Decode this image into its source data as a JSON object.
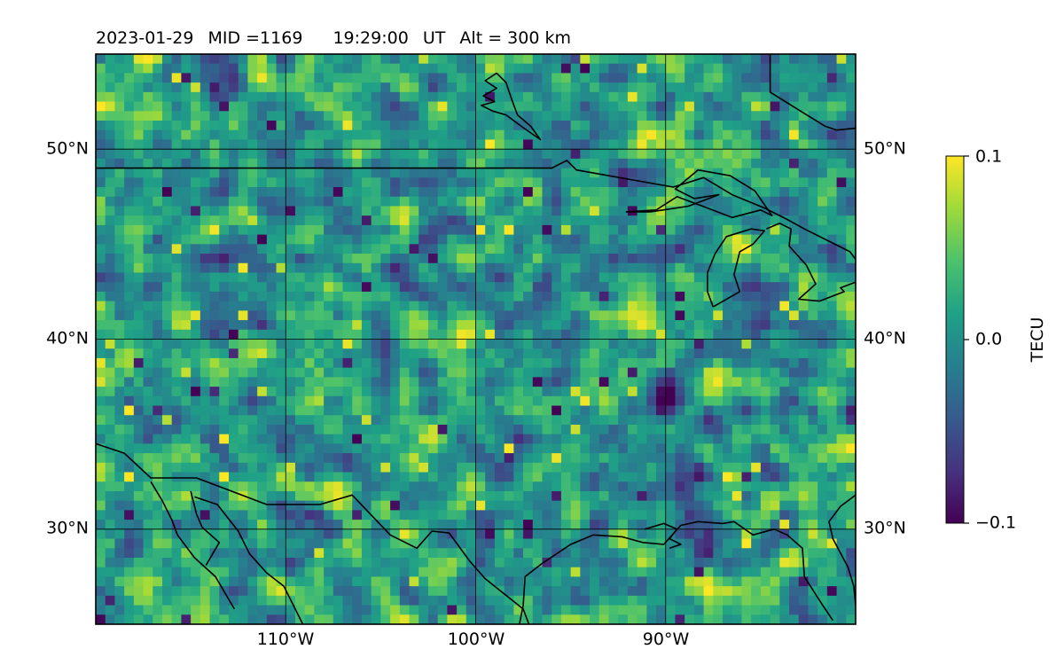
{
  "title": {
    "date": "2023-01-29",
    "mid": "MID =1169",
    "time": "19:29:00",
    "ut": "UT",
    "alt": "Alt = 300 km"
  },
  "map": {
    "type": "heatmap",
    "projection": "plate-carree",
    "lon_range": [
      -120,
      -80
    ],
    "lat_range": [
      25,
      55
    ],
    "grid": true,
    "lat_ticks_left": [
      {
        "value": 50,
        "label": "50°N"
      },
      {
        "value": 40,
        "label": "40°N"
      },
      {
        "value": 30,
        "label": "30°N"
      }
    ],
    "lat_ticks_right": [
      {
        "value": 50,
        "label": "50°N"
      },
      {
        "value": 40,
        "label": "40°N"
      },
      {
        "value": 30,
        "label": "30°N"
      }
    ],
    "lon_ticks_bottom": [
      {
        "value": -110,
        "label": "110°W"
      },
      {
        "value": -100,
        "label": "100°W"
      },
      {
        "value": -90,
        "label": "90°W"
      }
    ],
    "gridlines_lon": [
      -110,
      -100,
      -90
    ],
    "gridlines_lat": [
      30,
      40,
      50
    ]
  },
  "colorbar": {
    "label": "TECU",
    "colormap": "viridis",
    "range": [
      -0.1,
      0.1
    ],
    "ticks": [
      {
        "value": 0.1,
        "label": "0.1"
      },
      {
        "value": 0.0,
        "label": "0.0"
      },
      {
        "value": -0.1,
        "label": "−0.1"
      }
    ],
    "colors": [
      "#440154",
      "#46327e",
      "#365c8d",
      "#277f8e",
      "#1fa187",
      "#4ac16d",
      "#a0da39",
      "#fde725"
    ]
  },
  "chart_data": {
    "type": "heatmap",
    "title": "2023-01-29  MID =1169    19:29:00  UT  Alt = 300 km",
    "x_range": [
      -120,
      -80
    ],
    "y_range": [
      25,
      55
    ],
    "xlabel": "",
    "ylabel": "",
    "colorbar_label": "TECU",
    "value_range": [
      -0.1,
      0.1
    ],
    "grid": true,
    "coastlines": [
      [
        [
          -120,
          49
        ],
        [
          -113,
          49
        ],
        [
          -104,
          49
        ],
        [
          -96,
          49
        ],
        [
          -95.2,
          49.4
        ],
        [
          -94.7,
          48.9
        ],
        [
          -89.6,
          48
        ],
        [
          -88,
          48.5
        ],
        [
          -86.5,
          47.6
        ],
        [
          -84.8,
          46.9
        ],
        [
          -83.6,
          46.3
        ],
        [
          -82.7,
          45.8
        ],
        [
          -81.7,
          45.3
        ],
        [
          -80.3,
          44.6
        ],
        [
          -80,
          44.2
        ]
      ],
      [
        [
          -98.9,
          54
        ],
        [
          -98.4,
          53.5
        ],
        [
          -98.1,
          52.6
        ],
        [
          -97.8,
          51.8
        ],
        [
          -97.1,
          51.2
        ],
        [
          -96.6,
          50.5
        ],
        [
          -97.6,
          51.2
        ],
        [
          -98.4,
          51.8
        ],
        [
          -99.1,
          52
        ],
        [
          -99.7,
          52.3
        ],
        [
          -99,
          52.5
        ],
        [
          -99.6,
          52.8
        ],
        [
          -98.9,
          53.2
        ],
        [
          -99.5,
          53.6
        ],
        [
          -98.9,
          54
        ]
      ],
      [
        [
          -84.5,
          55
        ],
        [
          -84.5,
          53
        ],
        [
          -82.9,
          52
        ],
        [
          -81.6,
          51.2
        ],
        [
          -81,
          51
        ],
        [
          -80,
          51.1
        ]
      ],
      [
        [
          -92.1,
          46.7
        ],
        [
          -90.5,
          46.8
        ],
        [
          -89.4,
          47.5
        ],
        [
          -87.8,
          46.9
        ],
        [
          -86.5,
          46.4
        ],
        [
          -85,
          46.8
        ],
        [
          -84.4,
          46.5
        ],
        [
          -85.3,
          47.8
        ],
        [
          -86.6,
          48.6
        ],
        [
          -88.3,
          48.9
        ],
        [
          -89.5,
          47.9
        ],
        [
          -88.5,
          47.4
        ],
        [
          -87.2,
          47.6
        ],
        [
          -88.8,
          47
        ],
        [
          -90.8,
          46.7
        ],
        [
          -92.1,
          46.7
        ]
      ],
      [
        [
          -87.5,
          41.7
        ],
        [
          -87.8,
          42.5
        ],
        [
          -87.8,
          43.5
        ],
        [
          -87.4,
          44.5
        ],
        [
          -86.8,
          45.4
        ],
        [
          -85.5,
          45.8
        ],
        [
          -84.8,
          45.7
        ],
        [
          -85.4,
          45
        ],
        [
          -86.1,
          44.6
        ],
        [
          -86.4,
          43.4
        ],
        [
          -86.1,
          42.5
        ],
        [
          -87.5,
          41.7
        ]
      ],
      [
        [
          -84.7,
          45.8
        ],
        [
          -84,
          46.1
        ],
        [
          -83.4,
          45.8
        ],
        [
          -83.5,
          44.9
        ],
        [
          -82.6,
          43.9
        ],
        [
          -82.1,
          42.9
        ],
        [
          -83,
          42.1
        ],
        [
          -81.9,
          42
        ],
        [
          -80.6,
          42.5
        ],
        [
          -80.8,
          42.7
        ],
        [
          -80,
          43
        ]
      ],
      [
        [
          -120,
          34.5
        ],
        [
          -118.5,
          34
        ],
        [
          -117.1,
          32.7
        ],
        [
          -114.7,
          32.7
        ],
        [
          -111,
          31.3
        ],
        [
          -108.2,
          31.3
        ],
        [
          -106.5,
          31.8
        ],
        [
          -104.5,
          29.7
        ],
        [
          -103.1,
          29
        ],
        [
          -102.3,
          29.9
        ],
        [
          -101.4,
          29.8
        ],
        [
          -100.3,
          28.3
        ],
        [
          -99.5,
          27.4
        ],
        [
          -97.5,
          25.8
        ],
        [
          -97.2,
          25
        ]
      ],
      [
        [
          -117.1,
          32.5
        ],
        [
          -116.5,
          31.5
        ],
        [
          -116,
          30.5
        ],
        [
          -115.7,
          29.7
        ],
        [
          -114.8,
          28.5
        ],
        [
          -113.7,
          27.5
        ],
        [
          -112.7,
          25.8
        ]
      ],
      [
        [
          -114.8,
          31.7
        ],
        [
          -113.6,
          31.3
        ],
        [
          -112.5,
          29.9
        ],
        [
          -111.9,
          28.7
        ],
        [
          -111,
          27.7
        ],
        [
          -110.1,
          27
        ],
        [
          -109.5,
          25.8
        ],
        [
          -109.1,
          25
        ]
      ],
      [
        [
          -115,
          32
        ],
        [
          -114.7,
          30.8
        ],
        [
          -114.4,
          30.1
        ],
        [
          -113.5,
          29.3
        ],
        [
          -114.2,
          28.1
        ]
      ],
      [
        [
          -97.7,
          25
        ],
        [
          -97.5,
          26
        ],
        [
          -97.4,
          27.5
        ],
        [
          -96.5,
          28.2
        ],
        [
          -95,
          29.2
        ],
        [
          -93.8,
          29.7
        ],
        [
          -92.3,
          29.6
        ],
        [
          -91.2,
          29.3
        ],
        [
          -90.1,
          29.2
        ],
        [
          -89.2,
          30.2
        ],
        [
          -88.3,
          30.4
        ],
        [
          -87,
          30.3
        ],
        [
          -86.4,
          30.4
        ],
        [
          -85.4,
          29.7
        ],
        [
          -84.3,
          30
        ],
        [
          -83.6,
          29.7
        ],
        [
          -82.8,
          29
        ],
        [
          -82.7,
          27.5
        ],
        [
          -81.8,
          26.1
        ],
        [
          -81.2,
          25.2
        ]
      ],
      [
        [
          -80,
          31.8
        ],
        [
          -80.8,
          31.2
        ],
        [
          -81.4,
          30.4
        ],
        [
          -81.2,
          29.5
        ],
        [
          -80.4,
          28
        ],
        [
          -80.1,
          27
        ],
        [
          -80,
          26
        ]
      ],
      [
        [
          -91.1,
          30
        ],
        [
          -90.1,
          30.3
        ],
        [
          -89.4,
          30
        ],
        [
          -89.8,
          29.5
        ],
        [
          -89.2,
          29.2
        ],
        [
          -89.8,
          29
        ]
      ]
    ]
  }
}
